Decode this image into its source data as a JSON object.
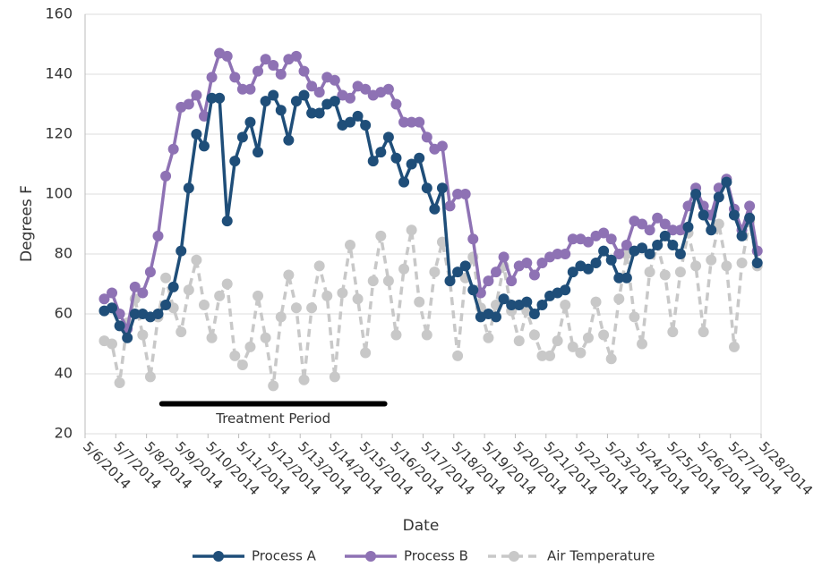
{
  "chart_data": {
    "type": "line",
    "y_label": "Degrees F",
    "x_label": "Date",
    "x": [
      41765.625,
      41765.875,
      41766.125,
      41766.375,
      41766.625,
      41766.875,
      41767.125,
      41767.375,
      41767.625,
      41767.875,
      41768.125,
      41768.375,
      41768.625,
      41768.875,
      41769.125,
      41769.375,
      41769.625,
      41769.875,
      41770.125,
      41770.375,
      41770.625,
      41770.875,
      41771.125,
      41771.375,
      41771.625,
      41771.875,
      41772.125,
      41772.375,
      41772.625,
      41772.875,
      41773.125,
      41773.375,
      41773.625,
      41773.875,
      41774.125,
      41774.375,
      41774.625,
      41774.875,
      41775.125,
      41775.375,
      41775.625,
      41775.875,
      41776.125,
      41776.375,
      41776.625,
      41776.875,
      41777.125,
      41777.375,
      41777.625,
      41777.875,
      41778.125,
      41778.375,
      41778.625,
      41778.875,
      41779.125,
      41779.375,
      41779.625,
      41779.875,
      41780.125,
      41780.375,
      41780.625,
      41780.875,
      41781.125,
      41781.375,
      41781.625,
      41781.875,
      41782.125,
      41782.375,
      41782.625,
      41782.875,
      41783.125,
      41783.375,
      41783.625,
      41783.875,
      41784.125,
      41784.375,
      41784.625,
      41784.875,
      41785.125,
      41785.375,
      41785.625,
      41785.875,
      41786.125,
      41786.375,
      41786.625,
      41786.875
    ],
    "series": [
      {
        "name": "Process A",
        "color": "#1f4e79",
        "dashed": false,
        "values": [
          61,
          62,
          56,
          52,
          60,
          60,
          59,
          60,
          63,
          69,
          81,
          102,
          120,
          116,
          132,
          132,
          91,
          111,
          119,
          124,
          114,
          131,
          133,
          128,
          118,
          131,
          133,
          127,
          127,
          130,
          131,
          123,
          124,
          126,
          123,
          111,
          114,
          119,
          112,
          104,
          110,
          112,
          102,
          95,
          102,
          71,
          74,
          76,
          68,
          59,
          60,
          59,
          65,
          63,
          63,
          64,
          60,
          63,
          66,
          67,
          68,
          74,
          76,
          75,
          77,
          81,
          78,
          72,
          72,
          81,
          82,
          80,
          83,
          86,
          83,
          80,
          89,
          100,
          93,
          88,
          99,
          104,
          93,
          86,
          92,
          77
        ]
      },
      {
        "name": "Process B",
        "color": "#8e72b4",
        "dashed": false,
        "values": [
          65,
          67,
          60,
          55,
          69,
          67,
          74,
          86,
          106,
          115,
          129,
          130,
          133,
          126,
          139,
          147,
          146,
          139,
          135,
          135,
          141,
          145,
          143,
          140,
          145,
          146,
          141,
          136,
          134,
          139,
          138,
          133,
          132,
          136,
          135,
          133,
          134,
          135,
          130,
          124,
          124,
          124,
          119,
          115,
          116,
          96,
          100,
          100,
          85,
          67,
          71,
          74,
          79,
          71,
          76,
          77,
          73,
          77,
          79,
          80,
          80,
          85,
          85,
          84,
          86,
          87,
          85,
          80,
          83,
          91,
          90,
          88,
          92,
          90,
          88,
          88,
          96,
          102,
          96,
          93,
          102,
          105,
          95,
          88,
          96,
          81
        ]
      },
      {
        "name": "Air Temperature",
        "color": "#c8c8c8",
        "dashed": true,
        "values": [
          51,
          50,
          37,
          57,
          65,
          53,
          39,
          59,
          72,
          62,
          54,
          68,
          78,
          63,
          52,
          66,
          70,
          46,
          43,
          49,
          66,
          52,
          36,
          59,
          73,
          62,
          38,
          62,
          76,
          66,
          39,
          67,
          83,
          65,
          47,
          71,
          86,
          71,
          53,
          75,
          88,
          64,
          53,
          74,
          84,
          71,
          46,
          72,
          79,
          62,
          52,
          63,
          76,
          61,
          51,
          61,
          53,
          46,
          46,
          51,
          63,
          49,
          47,
          52,
          64,
          53,
          45,
          65,
          80,
          59,
          50,
          74,
          83,
          73,
          54,
          74,
          87,
          76,
          54,
          78,
          90,
          76,
          49,
          77,
          91,
          76
        ]
      }
    ],
    "xlim": [
      41765,
      41787
    ],
    "xticks": [
      {
        "value": 41765,
        "label": "5/6/2014"
      },
      {
        "value": 41766,
        "label": "5/7/2014"
      },
      {
        "value": 41767,
        "label": "5/8/2014"
      },
      {
        "value": 41768,
        "label": "5/9/2014"
      },
      {
        "value": 41769,
        "label": "5/10/2014"
      },
      {
        "value": 41770,
        "label": "5/11/2014"
      },
      {
        "value": 41771,
        "label": "5/12/2014"
      },
      {
        "value": 41772,
        "label": "5/13/2014"
      },
      {
        "value": 41773,
        "label": "5/14/2014"
      },
      {
        "value": 41774,
        "label": "5/15/2014"
      },
      {
        "value": 41775,
        "label": "5/16/2014"
      },
      {
        "value": 41776,
        "label": "5/17/2014"
      },
      {
        "value": 41777,
        "label": "5/18/2014"
      },
      {
        "value": 41778,
        "label": "5/19/2014"
      },
      {
        "value": 41779,
        "label": "5/20/2014"
      },
      {
        "value": 41780,
        "label": "5/21/2014"
      },
      {
        "value": 41781,
        "label": "5/22/2014"
      },
      {
        "value": 41782,
        "label": "5/23/2014"
      },
      {
        "value": 41783,
        "label": "5/24/2014"
      },
      {
        "value": 41784,
        "label": "5/25/2014"
      },
      {
        "value": 41785,
        "label": "5/26/2014"
      },
      {
        "value": 41786,
        "label": "5/27/2014"
      },
      {
        "value": 41787,
        "label": "5/28/2014"
      }
    ],
    "ylim": [
      20,
      160
    ],
    "yticks": [
      20,
      40,
      60,
      80,
      100,
      120,
      140,
      160
    ],
    "grid": true,
    "legend": "bottom",
    "treatment_period": {
      "label": "Treatment Period",
      "x": [
        41767.5,
        41774.75
      ],
      "y": 30
    }
  }
}
